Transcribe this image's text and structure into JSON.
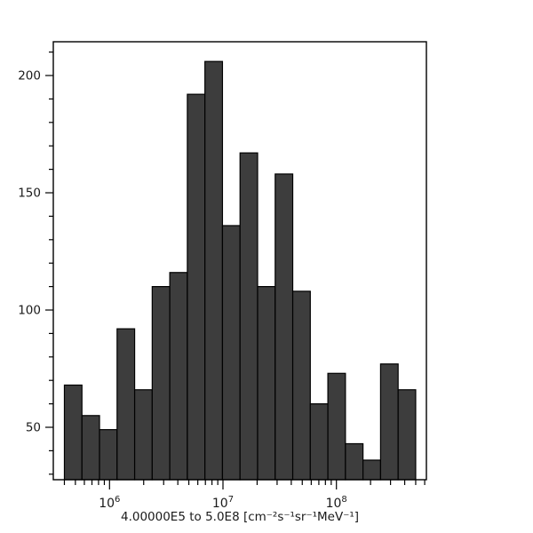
{
  "figure": {
    "background": "#ffffff"
  },
  "chart_data": {
    "type": "bar",
    "subtype": "histogram",
    "title": "",
    "xlabel": "4.00000E5 to 5.0E8 [cm⁻²s⁻¹sr⁻¹MeV⁻¹]",
    "ylabel": "",
    "bins": {
      "start": 400000,
      "end": 500000000,
      "count": 20,
      "spacing": "log"
    },
    "counts": [
      68,
      55,
      49,
      92,
      66,
      110,
      116,
      192,
      206,
      136,
      167,
      110,
      158,
      108,
      60,
      73,
      43,
      36,
      77,
      66
    ],
    "x_axis": {
      "scale": "log10",
      "range_log10": [
        5.5043,
        8.7933
      ],
      "major_ticks": [
        {
          "value": 1000000,
          "base": "10",
          "exp": "6"
        },
        {
          "value": 10000000,
          "base": "10",
          "exp": "7"
        },
        {
          "value": 100000000,
          "base": "10",
          "exp": "8"
        }
      ],
      "minor_mantissas": [
        2,
        3,
        4,
        5,
        6,
        7,
        8,
        9
      ]
    },
    "y_axis": {
      "range": [
        27.65,
        214.4
      ],
      "major_ticks": [
        50,
        100,
        150,
        200
      ],
      "minor_step": 10,
      "minor_min": 30,
      "minor_max": 210
    },
    "grid": false,
    "legend": null,
    "bar_fill": "#3d3d3d",
    "bar_stroke": "#000000",
    "frame_color": "#000000",
    "text_color": "#1a1a1a"
  }
}
